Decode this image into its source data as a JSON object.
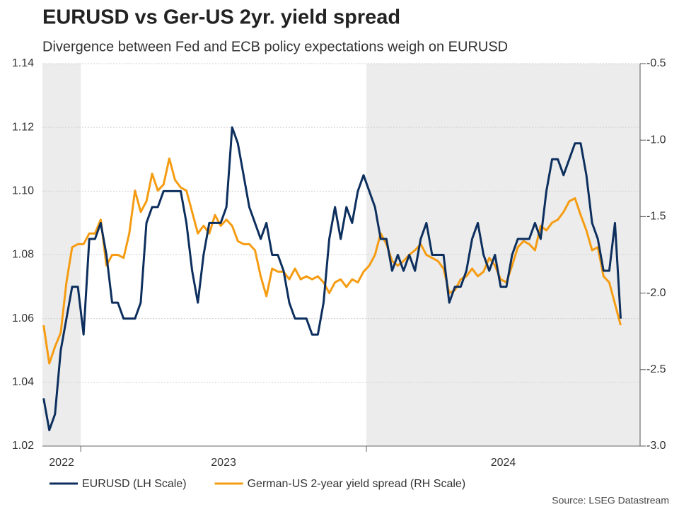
{
  "chart_data": {
    "type": "line",
    "title": "EURUSD vs Ger-US 2yr. yield spread",
    "subtitle": "Divergence between Fed and ECB policy expectations weigh on EURUSD",
    "source": "Source: LSEG Datastream",
    "x": [
      2022.87,
      2022.89,
      2022.91,
      2022.93,
      2022.95,
      2022.97,
      2022.99,
      2023.01,
      2023.03,
      2023.05,
      2023.07,
      2023.09,
      2023.11,
      2023.13,
      2023.15,
      2023.17,
      2023.19,
      2023.21,
      2023.23,
      2023.25,
      2023.27,
      2023.29,
      2023.31,
      2023.33,
      2023.35,
      2023.37,
      2023.39,
      2023.41,
      2023.43,
      2023.45,
      2023.47,
      2023.49,
      2023.51,
      2023.53,
      2023.55,
      2023.57,
      2023.59,
      2023.61,
      2023.63,
      2023.65,
      2023.67,
      2023.69,
      2023.71,
      2023.73,
      2023.75,
      2023.77,
      2023.79,
      2023.81,
      2023.83,
      2023.85,
      2023.87,
      2023.89,
      2023.91,
      2023.93,
      2023.95,
      2023.97,
      2023.99,
      2024.01,
      2024.03,
      2024.05,
      2024.07,
      2024.09,
      2024.11,
      2024.13,
      2024.15,
      2024.17,
      2024.19,
      2024.21,
      2024.23,
      2024.25,
      2024.27,
      2024.29,
      2024.31,
      2024.33,
      2024.35,
      2024.37,
      2024.39,
      2024.41,
      2024.43,
      2024.45,
      2024.47,
      2024.49,
      2024.51,
      2024.53,
      2024.55,
      2024.57,
      2024.59,
      2024.61,
      2024.63,
      2024.65,
      2024.67,
      2024.69,
      2024.71,
      2024.73,
      2024.75,
      2024.77,
      2024.79,
      2024.81,
      2024.83,
      2024.85,
      2024.87,
      2024.89
    ],
    "xlim": [
      2022.866,
      2024.958
    ],
    "xticks": [
      2023,
      2024
    ],
    "x_periods": [
      "2022",
      "2023",
      "2024"
    ],
    "shade": "alternate",
    "ylim": [
      1.02,
      1.14
    ],
    "yticks": [
      1.02,
      1.04,
      1.06,
      1.08,
      {
        "value": 1.1,
        "label": "1.10"
      },
      1.12,
      1.14
    ],
    "y2lim": [
      -3.0,
      -0.5
    ],
    "y2ticks": [
      {
        "value": -3.0,
        "label": "-3.0"
      },
      -2.5,
      {
        "value": -2.0,
        "label": "-2.0"
      },
      -1.5,
      {
        "value": -1.0,
        "label": "-1.0"
      },
      -0.5
    ],
    "grid": true,
    "legend": "bottom-left",
    "series": [
      {
        "name": "EURUSD (LH Scale)",
        "color": "#0d2f5e",
        "values": [
          1.035,
          1.025,
          1.03,
          1.05,
          1.06,
          1.07,
          1.07,
          1.055,
          1.085,
          1.085,
          1.09,
          1.08,
          1.065,
          1.065,
          1.06,
          1.06,
          1.06,
          1.065,
          1.09,
          1.095,
          1.095,
          1.1,
          1.1,
          1.1,
          1.1,
          1.09,
          1.075,
          1.065,
          1.08,
          1.09,
          1.09,
          1.09,
          1.095,
          1.12,
          1.115,
          1.105,
          1.095,
          1.09,
          1.085,
          1.09,
          1.08,
          1.08,
          1.075,
          1.065,
          1.06,
          1.06,
          1.06,
          1.055,
          1.055,
          1.065,
          1.085,
          1.095,
          1.085,
          1.095,
          1.09,
          1.1,
          1.105,
          1.1,
          1.095,
          1.085,
          1.085,
          1.075,
          1.08,
          1.075,
          1.08,
          1.075,
          1.085,
          1.09,
          1.08,
          1.08,
          1.08,
          1.065,
          1.07,
          1.07,
          1.075,
          1.085,
          1.09,
          1.08,
          1.075,
          1.08,
          1.07,
          1.07,
          1.08,
          1.085,
          1.085,
          1.085,
          1.09,
          1.085,
          1.1,
          1.11,
          1.11,
          1.105,
          1.11,
          1.115,
          1.115,
          1.105,
          1.09,
          1.085,
          1.075,
          1.075,
          1.09,
          1.06
        ]
      },
      {
        "name": "German-US 2-year yield spread (RH Scale)",
        "color": "#f59c12",
        "axis": "y2",
        "values": [
          -2.21,
          -2.46,
          -2.35,
          -2.26,
          -1.93,
          -1.7,
          -1.68,
          -1.68,
          -1.61,
          -1.61,
          -1.52,
          -1.82,
          -1.75,
          -1.75,
          -1.77,
          -1.61,
          -1.33,
          -1.47,
          -1.4,
          -1.22,
          -1.33,
          -1.29,
          -1.12,
          -1.26,
          -1.31,
          -1.33,
          -1.47,
          -1.61,
          -1.56,
          -1.61,
          -1.49,
          -1.56,
          -1.52,
          -1.56,
          -1.66,
          -1.68,
          -1.68,
          -1.72,
          -1.89,
          -2.02,
          -1.84,
          -1.86,
          -1.86,
          -1.91,
          -1.84,
          -1.91,
          -1.89,
          -1.91,
          -1.89,
          -1.93,
          -2.0,
          -1.93,
          -1.91,
          -1.96,
          -1.91,
          -1.93,
          -1.86,
          -1.82,
          -1.75,
          -1.61,
          -1.68,
          -1.79,
          -1.82,
          -1.79,
          -1.75,
          -1.72,
          -1.68,
          -1.75,
          -1.77,
          -1.79,
          -1.84,
          -2.0,
          -1.98,
          -1.91,
          -1.89,
          -1.84,
          -1.89,
          -1.86,
          -1.77,
          -1.82,
          -1.91,
          -1.93,
          -1.82,
          -1.7,
          -1.66,
          -1.68,
          -1.72,
          -1.56,
          -1.59,
          -1.54,
          -1.52,
          -1.47,
          -1.4,
          -1.38,
          -1.49,
          -1.59,
          -1.72,
          -1.7,
          -1.89,
          -1.93,
          -2.07,
          -2.21
        ]
      }
    ]
  }
}
